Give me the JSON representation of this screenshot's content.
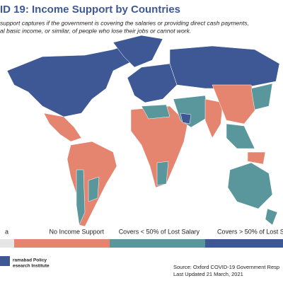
{
  "header": {
    "title": "ID 19: Income Support by Countries",
    "subtitle": [
      "support captures if the government is covering the salaries or providing direct cash payments,",
      "al basic income, or similar, of people who lose their jobs or cannot work."
    ]
  },
  "legend": [
    {
      "label": "a",
      "color": "#e6e6e6"
    },
    {
      "label": "No Income Support",
      "color": "#e5846f"
    },
    {
      "label": "Covers < 50% of Lost Salary",
      "color": "#5a979c"
    },
    {
      "label": "Covers > 50% of Lost Sa",
      "color": "#3e5896"
    }
  ],
  "footer": {
    "org": [
      "ramabad Policy",
      "esearch Institute"
    ],
    "source": "Source: Oxford COVID-19 Government Resp",
    "updated": "Last Updated 21 March, 2021"
  }
}
